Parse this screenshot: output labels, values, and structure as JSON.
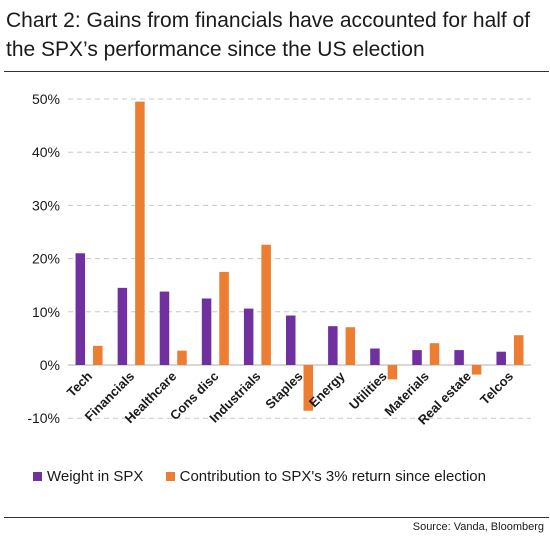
{
  "title": {
    "line1": "Chart 2: Gains from financials have accounted for half of",
    "line2": "the SPX’s performance since the US election"
  },
  "source": "Source: Vanda, Bloomberg",
  "colors": {
    "weight": "#7030a0",
    "contribution": "#ed7d31",
    "grid": "#c8c8c8",
    "axis": "#bfbfbf"
  },
  "chart_data": {
    "type": "bar",
    "categories": [
      "Tech",
      "Financials",
      "Healthcare",
      "Cons disc",
      "Industrials",
      "Staples",
      "Energy",
      "Utilities",
      "Materials",
      "Real estate",
      "Telcos"
    ],
    "series": [
      {
        "name": "Weight in SPX",
        "values": [
          21,
          14.5,
          13.8,
          12.5,
          10.6,
          9.3,
          7.3,
          3.1,
          2.8,
          2.8,
          2.5
        ]
      },
      {
        "name": "Contribution to SPX's 3% return since election",
        "values": [
          3.6,
          49.5,
          2.7,
          17.5,
          22.6,
          -8.6,
          7.1,
          -2.7,
          4.1,
          -1.8,
          5.6
        ]
      }
    ],
    "ylim": [
      -10,
      50
    ],
    "yticks": [
      "-10%",
      "0%",
      "10%",
      "20%",
      "30%",
      "40%",
      "50%"
    ],
    "ytick_values": [
      -10,
      0,
      10,
      20,
      30,
      40,
      50
    ],
    "grid": true,
    "legend_position": "bottom"
  }
}
